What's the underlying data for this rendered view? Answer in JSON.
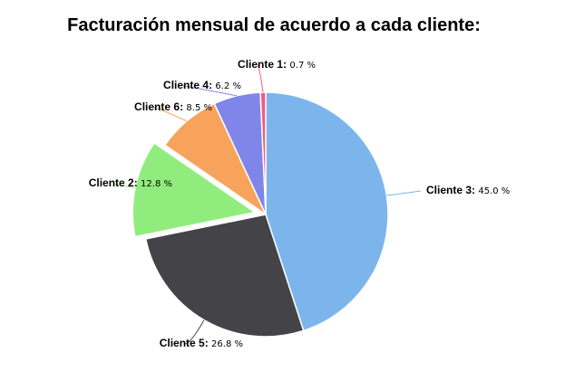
{
  "chart_data": {
    "type": "pie",
    "title": "Facturación mensual de acuerdo a cada cliente:",
    "unit": "%",
    "slices": [
      {
        "name": "Cliente 3",
        "value": 45.0,
        "value_label": "45.0 %",
        "color": "#7cb5ec",
        "exploded": false
      },
      {
        "name": "Cliente 5",
        "value": 26.8,
        "value_label": "26.8 %",
        "color": "#434348",
        "exploded": false
      },
      {
        "name": "Cliente 2",
        "value": 12.8,
        "value_label": "12.8 %",
        "color": "#90ed7d",
        "exploded": true
      },
      {
        "name": "Cliente 6",
        "value": 8.5,
        "value_label": "8.5 %",
        "color": "#f7a35c",
        "exploded": false
      },
      {
        "name": "Cliente 4",
        "value": 6.2,
        "value_label": "6.2 %",
        "color": "#8085e9",
        "exploded": false
      },
      {
        "name": "Cliente 1",
        "value": 0.7,
        "value_label": "0.7 %",
        "color": "#f15c80",
        "exploded": false
      }
    ]
  }
}
